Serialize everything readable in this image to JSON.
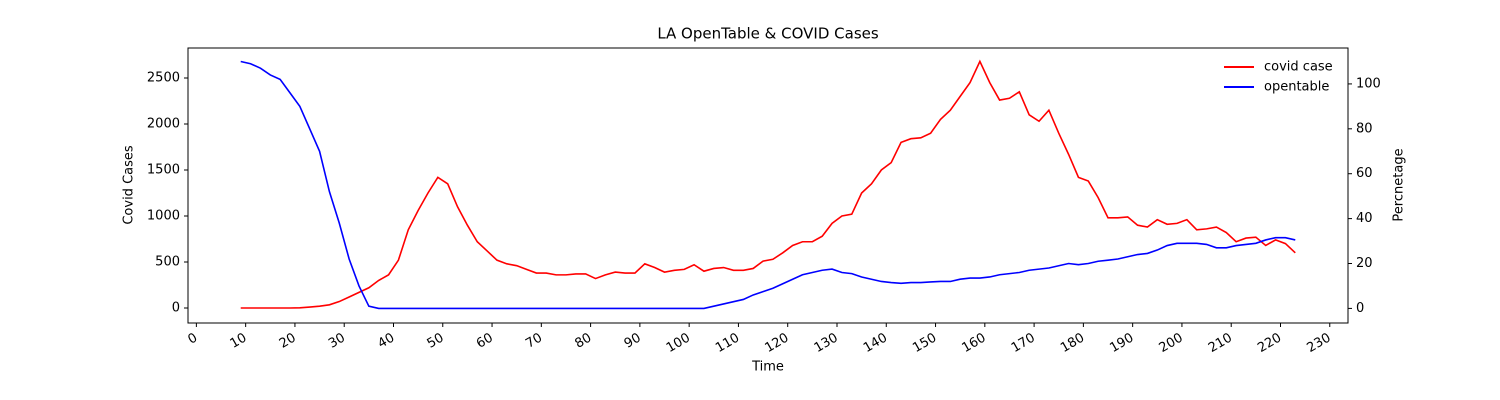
{
  "chart_data": {
    "type": "line",
    "title": "LA OpenTable & COVID Cases",
    "x_label": "Time",
    "y_label": "Covid Cases",
    "y2_label": "Percnetage",
    "x": [
      9,
      11,
      13,
      15,
      17,
      19,
      21,
      23,
      25,
      27,
      29,
      31,
      33,
      35,
      37,
      39,
      41,
      43,
      45,
      47,
      49,
      51,
      53,
      55,
      57,
      59,
      61,
      63,
      65,
      67,
      69,
      71,
      73,
      75,
      77,
      79,
      81,
      83,
      85,
      87,
      89,
      91,
      93,
      95,
      97,
      99,
      101,
      103,
      105,
      107,
      109,
      111,
      113,
      115,
      117,
      119,
      121,
      123,
      125,
      127,
      129,
      131,
      133,
      135,
      137,
      139,
      141,
      143,
      145,
      147,
      149,
      151,
      153,
      155,
      157,
      159,
      161,
      163,
      165,
      167,
      169,
      171,
      173,
      175,
      177,
      179,
      181,
      183,
      185,
      187,
      189,
      191,
      193,
      195,
      197,
      199,
      201,
      203,
      205,
      207,
      209,
      211,
      213,
      215,
      217,
      219,
      221,
      223
    ],
    "series": [
      {
        "name": "covid case",
        "color": "#ff0000",
        "values": [
          0,
          0,
          0,
          0,
          0,
          0,
          2,
          10,
          20,
          35,
          70,
          120,
          170,
          220,
          300,
          360,
          520,
          850,
          1060,
          1250,
          1420,
          1350,
          1100,
          900,
          720,
          620,
          520,
          480,
          460,
          420,
          380,
          380,
          360,
          360,
          370,
          370,
          320,
          360,
          390,
          380,
          380,
          480,
          440,
          390,
          410,
          420,
          470,
          400,
          430,
          440,
          410,
          410,
          430,
          510,
          530,
          600,
          680,
          720,
          720,
          780,
          920,
          1000,
          1020,
          1250,
          1350,
          1500,
          1580,
          1800,
          1840,
          1850,
          1900,
          2050,
          2150,
          2300,
          2450,
          2680,
          2450,
          2260,
          2280,
          2350,
          2100,
          2030,
          2150,
          1900,
          1670,
          1420,
          1380,
          1200,
          980,
          980,
          990,
          900,
          880,
          960,
          910,
          920,
          960,
          850,
          860,
          880,
          820,
          720,
          760,
          770,
          680,
          740,
          700,
          600
        ]
      },
      {
        "name": "opentable",
        "color": "#0000ff",
        "axis": "y2",
        "values": [
          110,
          109,
          107,
          104,
          102,
          96,
          90,
          80,
          70,
          52,
          38,
          22,
          10,
          1,
          0,
          0,
          0,
          0,
          0,
          0,
          0,
          0,
          0,
          0,
          0,
          0,
          0,
          0,
          0,
          0,
          0,
          0,
          0,
          0,
          0,
          0,
          0,
          0,
          0,
          0,
          0,
          0,
          0,
          0,
          0,
          0,
          0,
          0,
          1,
          2,
          3,
          4,
          6,
          7.5,
          9,
          11,
          13,
          15,
          16,
          17,
          17.5,
          16,
          15.5,
          14,
          13,
          12,
          11.5,
          11.2,
          11.5,
          11.5,
          11.8,
          12,
          12,
          13,
          13.5,
          13.5,
          14,
          15,
          15.5,
          16,
          17,
          17.5,
          18,
          19,
          20,
          19.5,
          20,
          21,
          21.5,
          22,
          23,
          24,
          24.5,
          26,
          28,
          29,
          29,
          29,
          28.5,
          27,
          27,
          28,
          28.5,
          29,
          30.5,
          31.5,
          31.5,
          30.5
        ]
      }
    ],
    "xlim": [
      -1.7,
      233.7
    ],
    "xticks": [
      0,
      10,
      20,
      30,
      40,
      50,
      60,
      70,
      80,
      90,
      100,
      110,
      120,
      130,
      140,
      150,
      160,
      170,
      180,
      190,
      200,
      210,
      220,
      230
    ],
    "ylim": [
      -163,
      2826
    ],
    "yticks": [
      0,
      500,
      1000,
      1500,
      2000,
      2500
    ],
    "y2lim": [
      -6.5,
      116
    ],
    "y2ticks": [
      0,
      20,
      40,
      60,
      80,
      100
    ],
    "legend": "upper right"
  }
}
